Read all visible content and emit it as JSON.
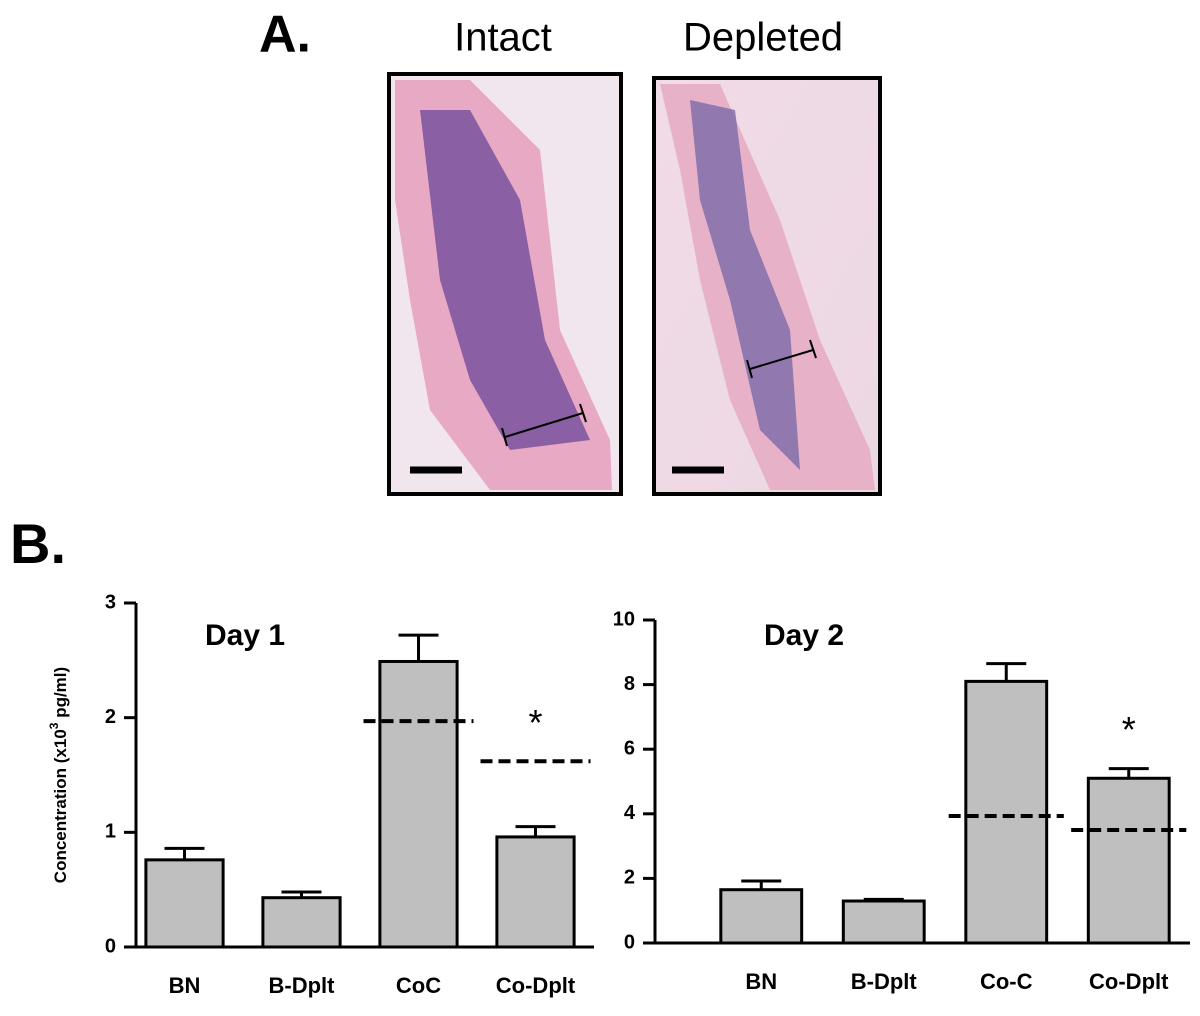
{
  "panel_a": {
    "label": "A.",
    "images": [
      "Intact",
      "Depleted"
    ]
  },
  "panel_b": {
    "label": "B."
  },
  "chart_data": [
    {
      "type": "bar",
      "title": "Day 1",
      "ylabel": [
        "Concentration (x10",
        "3",
        " pg/ml)"
      ],
      "categories": [
        "BN",
        "B-Dplt",
        "CoC",
        "Co-Dplt"
      ],
      "values": [
        0.76,
        0.43,
        2.49,
        0.96
      ],
      "errors": [
        0.1,
        0.05,
        0.23,
        0.09
      ],
      "reference": [
        null,
        null,
        1.97,
        1.62
      ],
      "annotations": [
        null,
        null,
        null,
        "*"
      ],
      "color": "#bfbfbf",
      "ylim": [
        0,
        3
      ],
      "yticks": [
        0,
        1,
        2,
        3
      ]
    },
    {
      "type": "bar",
      "title": "Day 2",
      "categories": [
        "BN",
        "B-Dplt",
        "Co-C",
        "Co-Dplt"
      ],
      "values": [
        1.65,
        1.3,
        8.1,
        5.1
      ],
      "errors": [
        0.27,
        0.05,
        0.55,
        0.3
      ],
      "reference": [
        null,
        null,
        3.93,
        3.5
      ],
      "annotations": [
        null,
        null,
        null,
        "*"
      ],
      "color": "#bfbfbf",
      "ylim": [
        0,
        10
      ],
      "yticks": [
        0,
        2,
        4,
        6,
        8,
        10
      ]
    }
  ]
}
